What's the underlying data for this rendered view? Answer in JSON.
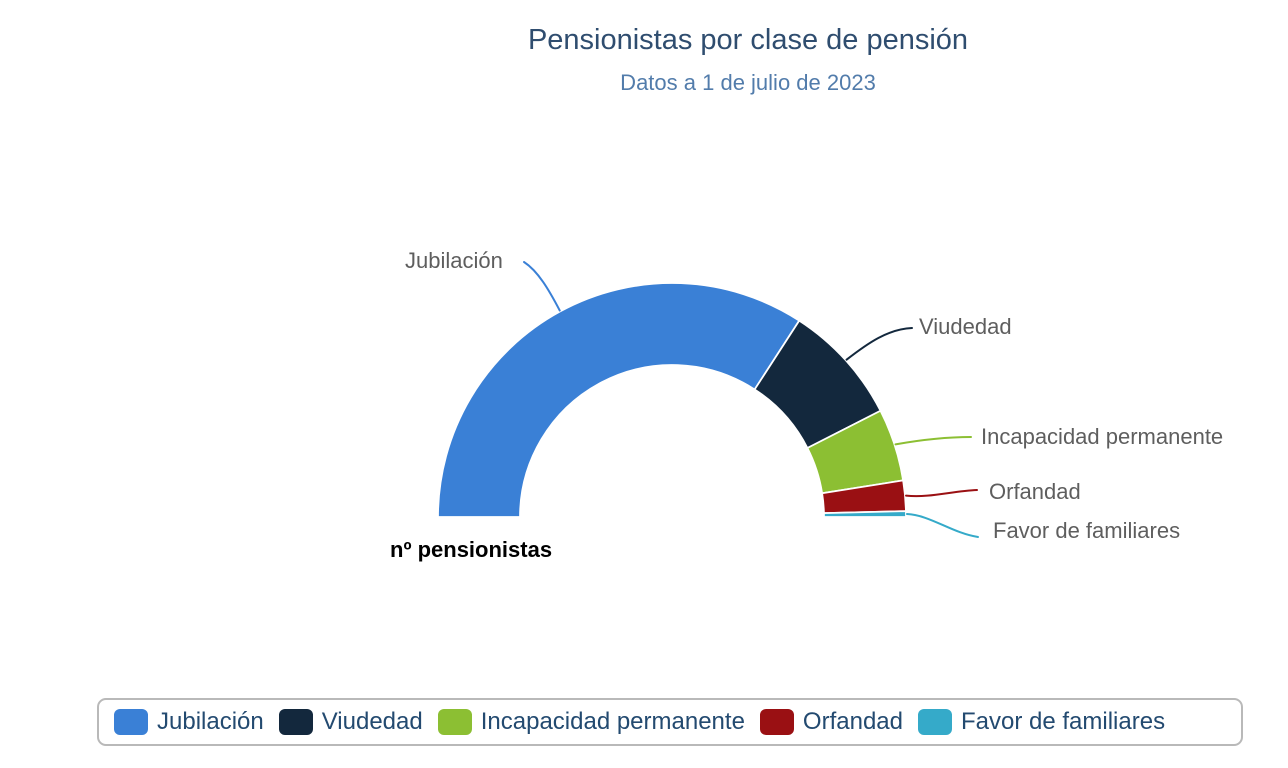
{
  "chart": {
    "title": "Pensionistas por clase de pensión",
    "subtitle": "Datos a 1 de julio de 2023",
    "center_label": "nº pensionistas",
    "title_color": "#2f4d6f",
    "subtitle_color": "#527cab",
    "background_color": "#ffffff",
    "slice_label_color": "#5e5e5e"
  },
  "chart_data": {
    "type": "pie",
    "subtype": "semi-donut",
    "title": "Pensionistas por clase de pensión",
    "subtitle": "Datos a 1 de julio de 2023",
    "center_label": "nº pensionistas",
    "categories": [
      "Jubilación",
      "Viudedad",
      "Incapacidad permanente",
      "Orfandad",
      "Favor de familiares"
    ],
    "values": [
      68.3,
      16.7,
      10.0,
      4.2,
      0.8
    ],
    "unit": "percent of semicircle (estimated from arc angles; no numeric labels shown in chart)",
    "colors": [
      "#3a80d6",
      "#13283d",
      "#8cbf33",
      "#9a1013",
      "#35aac9"
    ],
    "start_angle_deg": 180,
    "end_angle_deg": 0,
    "inner_radius_ratio": 0.65,
    "grid": false,
    "legend_position": "bottom"
  },
  "legend": {
    "border_color": "#b9b9b9",
    "text_color": "#234a70",
    "items": [
      {
        "label": "Jubilación",
        "color": "#3a80d6"
      },
      {
        "label": "Viudedad",
        "color": "#13283d"
      },
      {
        "label": "Incapacidad permanente",
        "color": "#8cbf33"
      },
      {
        "label": "Orfandad",
        "color": "#9a1013"
      },
      {
        "label": "Favor de familiares",
        "color": "#35aac9"
      }
    ]
  }
}
